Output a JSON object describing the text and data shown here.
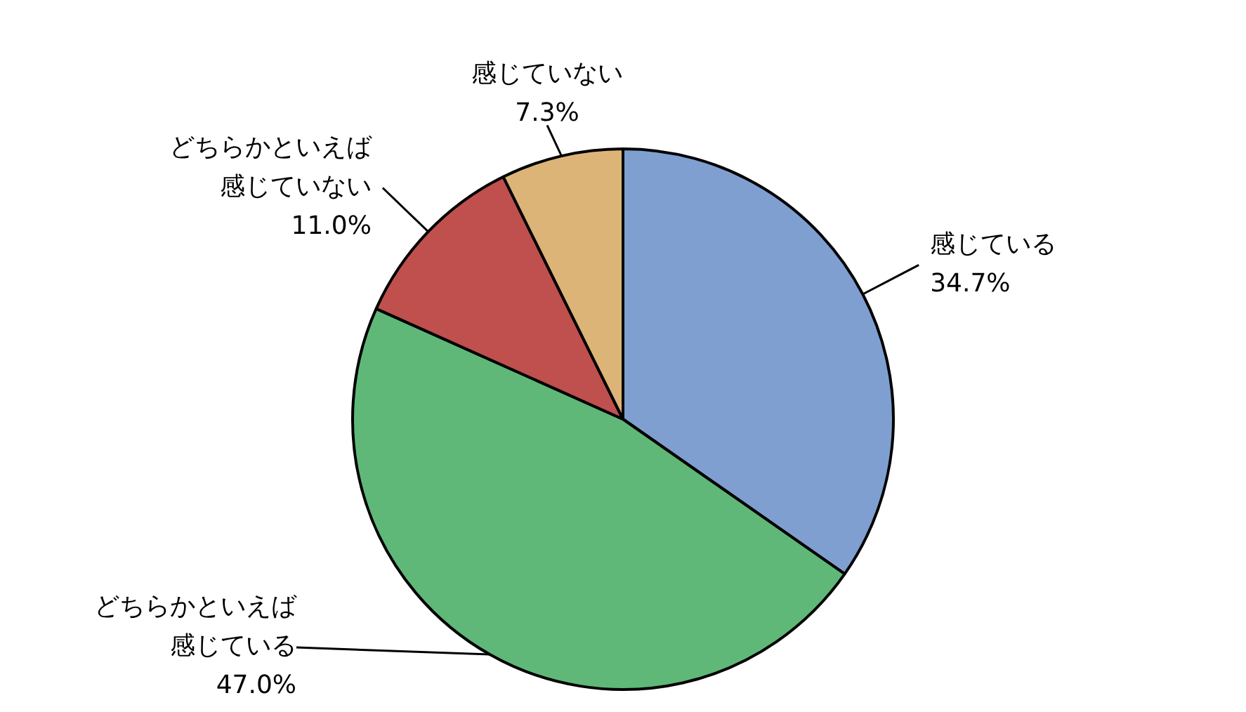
{
  "chart_data": {
    "type": "pie",
    "categories": [
      "感じている",
      "どちらかといえば感じている",
      "どちらかといえば感じていない",
      "感じていない"
    ],
    "values": [
      34.7,
      47.0,
      11.0,
      7.3
    ],
    "value_labels": [
      "34.7%",
      "47.0%",
      "11.0%",
      "7.3%"
    ],
    "colors": [
      "#7f9fd0",
      "#5fb878",
      "#c0504d",
      "#ddb478"
    ],
    "legend": false
  }
}
